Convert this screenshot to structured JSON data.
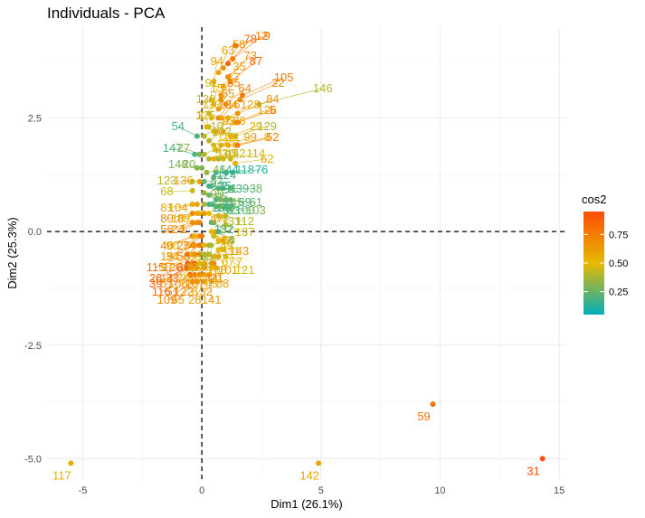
{
  "chart_data": {
    "type": "scatter",
    "title": "Individuals - PCA",
    "xlabel": "Dim1 (26.1%)",
    "ylabel": "Dim2 (25.3%)",
    "xlim": [
      -6.5,
      15.3
    ],
    "ylim": [
      -5.45,
      4.5
    ],
    "x_ticks": [
      -5,
      0,
      5,
      10,
      15
    ],
    "y_ticks": [
      -5.0,
      -2.5,
      0.0,
      2.5
    ],
    "x_tick_labels": [
      "-5",
      "0",
      "5",
      "10",
      "15"
    ],
    "y_tick_labels": [
      "-5.0",
      "-2.5",
      "0.0",
      "2.5"
    ],
    "reference_lines": {
      "x": 0,
      "y": 0,
      "style": "dashed"
    },
    "grid": true,
    "legend": {
      "title": "cos2",
      "placement": "right",
      "type": "colorbar",
      "ticks": [
        0.25,
        0.5,
        0.75
      ],
      "tick_labels": [
        "0.25",
        "0.50",
        "0.75"
      ],
      "range": [
        0.05,
        0.95
      ],
      "colors": [
        "#00AFBB",
        "#E7B800",
        "#FC4E07"
      ]
    },
    "points": [
      {
        "label": "9",
        "x": 1.4,
        "y": 4.1,
        "cos2": 0.8
      },
      {
        "label": "12",
        "x": 1.3,
        "y": 3.8,
        "cos2": 0.75
      },
      {
        "label": "78",
        "x": 1.1,
        "y": 3.7,
        "cos2": 0.85
      },
      {
        "label": "58",
        "x": 0.9,
        "y": 3.6,
        "cos2": 0.65
      },
      {
        "label": "63",
        "x": 0.7,
        "y": 3.5,
        "cos2": 0.6
      },
      {
        "label": "94",
        "x": 0.5,
        "y": 3.3,
        "cos2": 0.6
      },
      {
        "label": "73",
        "x": 1.1,
        "y": 3.4,
        "cos2": 0.7
      },
      {
        "label": "87",
        "x": 1.2,
        "y": 3.3,
        "cos2": 0.85
      },
      {
        "label": "35",
        "x": 0.9,
        "y": 3.2,
        "cos2": 0.6
      },
      {
        "label": "105",
        "x": 1.7,
        "y": 3.0,
        "cos2": 0.75
      },
      {
        "label": "22",
        "x": 1.6,
        "y": 2.9,
        "cos2": 0.7
      },
      {
        "label": "17",
        "x": 0.8,
        "y": 3.0,
        "cos2": 0.65
      },
      {
        "label": "85",
        "x": 0.8,
        "y": 2.9,
        "cos2": 0.7
      },
      {
        "label": "64",
        "x": 1.0,
        "y": 2.8,
        "cos2": 0.7
      },
      {
        "label": "91",
        "x": 0.4,
        "y": 2.9,
        "cos2": 0.45
      },
      {
        "label": "15",
        "x": 0.5,
        "y": 2.8,
        "cos2": 0.55
      },
      {
        "label": "55",
        "x": 0.7,
        "y": 2.7,
        "cos2": 0.65
      },
      {
        "label": "146",
        "x": 2.4,
        "y": 2.8,
        "cos2": 0.4
      },
      {
        "label": "84",
        "x": 1.5,
        "y": 2.6,
        "cos2": 0.65
      },
      {
        "label": "130",
        "x": 0.3,
        "y": 2.6,
        "cos2": 0.45
      },
      {
        "label": "133",
        "x": 0.4,
        "y": 2.5,
        "cos2": 0.5
      },
      {
        "label": "134",
        "x": 0.7,
        "y": 2.5,
        "cos2": 0.7
      },
      {
        "label": "16",
        "x": 0.8,
        "y": 2.5,
        "cos2": 0.65
      },
      {
        "label": "128",
        "x": 1.1,
        "y": 2.5,
        "cos2": 0.6
      },
      {
        "label": "126",
        "x": 1.4,
        "y": 2.4,
        "cos2": 0.6
      },
      {
        "label": "5",
        "x": 1.5,
        "y": 2.4,
        "cos2": 0.75
      },
      {
        "label": "3",
        "x": 0.2,
        "y": 2.3,
        "cos2": 0.55
      },
      {
        "label": "125",
        "x": 0.3,
        "y": 2.3,
        "cos2": 0.45
      },
      {
        "label": "75",
        "x": 0.5,
        "y": 2.2,
        "cos2": 0.5
      },
      {
        "label": "93",
        "x": 0.6,
        "y": 2.2,
        "cos2": 0.6
      },
      {
        "label": "86",
        "x": 0.9,
        "y": 2.2,
        "cos2": 0.6
      },
      {
        "label": "29",
        "x": 1.2,
        "y": 2.1,
        "cos2": 0.55
      },
      {
        "label": "129",
        "x": 1.4,
        "y": 2.1,
        "cos2": 0.4
      },
      {
        "label": "54",
        "x": -0.2,
        "y": 2.1,
        "cos2": 0.2
      },
      {
        "label": "10",
        "x": 0.1,
        "y": 2.1,
        "cos2": 0.4
      },
      {
        "label": "102",
        "x": 0.3,
        "y": 2.0,
        "cos2": 0.4
      },
      {
        "label": "113",
        "x": 0.5,
        "y": 1.9,
        "cos2": 0.5
      },
      {
        "label": "71",
        "x": 0.8,
        "y": 1.9,
        "cos2": 0.55
      },
      {
        "label": "99",
        "x": 1.1,
        "y": 1.9,
        "cos2": 0.6
      },
      {
        "label": "8",
        "x": 1.4,
        "y": 1.9,
        "cos2": 0.5
      },
      {
        "label": "52",
        "x": 1.5,
        "y": 1.9,
        "cos2": 0.75
      },
      {
        "label": "25",
        "x": 0.6,
        "y": 1.8,
        "cos2": 0.5
      },
      {
        "label": "147",
        "x": -0.3,
        "y": 1.7,
        "cos2": 0.2
      },
      {
        "label": "27",
        "x": -0.1,
        "y": 1.7,
        "cos2": 0.3
      },
      {
        "label": "77",
        "x": 0.1,
        "y": 1.7,
        "cos2": 0.4
      },
      {
        "label": "53",
        "x": 0.3,
        "y": 1.6,
        "cos2": 0.4
      },
      {
        "label": "110",
        "x": 0.5,
        "y": 1.6,
        "cos2": 0.55
      },
      {
        "label": "45",
        "x": 0.7,
        "y": 1.6,
        "cos2": 0.4
      },
      {
        "label": "42",
        "x": 0.9,
        "y": 1.6,
        "cos2": 0.45
      },
      {
        "label": "114",
        "x": 1.2,
        "y": 1.6,
        "cos2": 0.45
      },
      {
        "label": "62",
        "x": 1.4,
        "y": 1.5,
        "cos2": 0.55
      },
      {
        "label": "148",
        "x": -0.2,
        "y": 1.4,
        "cos2": 0.3
      },
      {
        "label": "20",
        "x": 0.0,
        "y": 1.4,
        "cos2": 0.3
      },
      {
        "label": "46",
        "x": 0.2,
        "y": 1.3,
        "cos2": 0.35
      },
      {
        "label": "144",
        "x": 0.6,
        "y": 1.3,
        "cos2": 0.15
      },
      {
        "label": "118",
        "x": 1.0,
        "y": 1.3,
        "cos2": 0.15
      },
      {
        "label": "76",
        "x": 1.3,
        "y": 1.3,
        "cos2": 0.1
      },
      {
        "label": "124",
        "x": 0.5,
        "y": 1.2,
        "cos2": 0.2
      },
      {
        "label": "123",
        "x": -0.4,
        "y": 1.1,
        "cos2": 0.4
      },
      {
        "label": "136",
        "x": -0.1,
        "y": 1.1,
        "cos2": 0.6
      },
      {
        "label": "82",
        "x": 0.1,
        "y": 1.1,
        "cos2": 0.25
      },
      {
        "label": "135",
        "x": 0.3,
        "y": 1.0,
        "cos2": 0.15
      },
      {
        "label": "2",
        "x": 0.4,
        "y": 1.0,
        "cos2": 0.2
      },
      {
        "label": "11",
        "x": 0.7,
        "y": 0.95,
        "cos2": 0.2
      },
      {
        "label": "139",
        "x": 0.9,
        "y": 0.95,
        "cos2": 0.2
      },
      {
        "label": "38",
        "x": 1.2,
        "y": 0.95,
        "cos2": 0.25
      },
      {
        "label": "68",
        "x": -0.4,
        "y": 0.9,
        "cos2": 0.45
      },
      {
        "label": "98",
        "x": 0.1,
        "y": 0.85,
        "cos2": 0.35
      },
      {
        "label": "95",
        "x": 0.3,
        "y": 0.8,
        "cos2": 0.25
      },
      {
        "label": "41",
        "x": 0.6,
        "y": 0.7,
        "cos2": 0.2
      },
      {
        "label": "145",
        "x": 0.8,
        "y": 0.7,
        "cos2": 0.3
      },
      {
        "label": "69",
        "x": 1.0,
        "y": 0.7,
        "cos2": 0.2
      },
      {
        "label": "61",
        "x": 1.2,
        "y": 0.7,
        "cos2": 0.25
      },
      {
        "label": "81",
        "x": -0.4,
        "y": 0.6,
        "cos2": 0.55
      },
      {
        "label": "104",
        "x": -0.2,
        "y": 0.6,
        "cos2": 0.6
      },
      {
        "label": "72",
        "x": 0.1,
        "y": 0.6,
        "cos2": 0.4
      },
      {
        "label": "134",
        "x": 0.3,
        "y": 0.6,
        "cos2": 0.2
      },
      {
        "label": "140",
        "x": 0.45,
        "y": 0.6,
        "cos2": 0.15
      },
      {
        "label": "92",
        "x": 0.6,
        "y": 0.55,
        "cos2": 0.2
      },
      {
        "label": "83",
        "x": 0.8,
        "y": 0.55,
        "cos2": 0.25
      },
      {
        "label": "100",
        "x": 1.0,
        "y": 0.55,
        "cos2": 0.2
      },
      {
        "label": "103",
        "x": 1.2,
        "y": 0.55,
        "cos2": 0.3
      },
      {
        "label": "80",
        "x": -0.4,
        "y": 0.4,
        "cos2": 0.7
      },
      {
        "label": "18",
        "x": -0.2,
        "y": 0.4,
        "cos2": 0.6
      },
      {
        "label": "89",
        "x": -0.1,
        "y": 0.4,
        "cos2": 0.55
      },
      {
        "label": "47",
        "x": 0.1,
        "y": 0.4,
        "cos2": 0.65
      },
      {
        "label": "70",
        "x": 0.3,
        "y": 0.4,
        "cos2": 0.5
      },
      {
        "label": "131",
        "x": 0.7,
        "y": 0.35,
        "cos2": 0.4
      },
      {
        "label": "112",
        "x": 1.0,
        "y": 0.35,
        "cos2": 0.4
      },
      {
        "label": "56",
        "x": -0.4,
        "y": 0.2,
        "cos2": 0.7
      },
      {
        "label": "24",
        "x": -0.2,
        "y": 0.2,
        "cos2": 0.65
      },
      {
        "label": "1",
        "x": -0.1,
        "y": 0.2,
        "cos2": 0.7
      },
      {
        "label": "132",
        "x": 0.4,
        "y": 0.2,
        "cos2": 0.2
      },
      {
        "label": "37",
        "x": 0.5,
        "y": 0.2,
        "cos2": 0.3
      },
      {
        "label": "137",
        "x": 1.0,
        "y": 0.15,
        "cos2": 0.45
      },
      {
        "label": "138",
        "x": 0.4,
        "y": 0.0,
        "cos2": 0.5
      },
      {
        "label": "60",
        "x": 0.6,
        "y": 0.0,
        "cos2": 0.6
      },
      {
        "label": "4",
        "x": 0.7,
        "y": 0.0,
        "cos2": 0.2
      },
      {
        "label": "40",
        "x": -0.4,
        "y": -0.1,
        "cos2": 0.75
      },
      {
        "label": "90",
        "x": -0.3,
        "y": -0.1,
        "cos2": 0.5
      },
      {
        "label": "23",
        "x": -0.1,
        "y": -0.1,
        "cos2": 0.7
      },
      {
        "label": "74",
        "x": 0.0,
        "y": -0.1,
        "cos2": 0.75
      },
      {
        "label": "49",
        "x": 0.5,
        "y": -0.1,
        "cos2": 0.45
      },
      {
        "label": "111",
        "x": 0.7,
        "y": -0.2,
        "cos2": 0.5
      },
      {
        "label": "143",
        "x": 0.9,
        "y": -0.2,
        "cos2": 0.65
      },
      {
        "label": "19",
        "x": -0.4,
        "y": -0.3,
        "cos2": 0.65
      },
      {
        "label": "34",
        "x": -0.3,
        "y": -0.3,
        "cos2": 0.6
      },
      {
        "label": "50",
        "x": -0.1,
        "y": -0.3,
        "cos2": 0.75
      },
      {
        "label": "36",
        "x": 0.1,
        "y": -0.3,
        "cos2": 0.5
      },
      {
        "label": "96",
        "x": 0.3,
        "y": -0.3,
        "cos2": 0.35
      },
      {
        "label": "119",
        "x": 0.4,
        "y": -0.3,
        "cos2": 0.4
      },
      {
        "label": "67",
        "x": 0.7,
        "y": -0.4,
        "cos2": 0.5
      },
      {
        "label": "7",
        "x": 0.9,
        "y": -0.4,
        "cos2": 0.55
      },
      {
        "label": "115",
        "x": -0.6,
        "y": -0.5,
        "cos2": 0.8
      },
      {
        "label": "97",
        "x": -0.4,
        "y": -0.5,
        "cos2": 0.55
      },
      {
        "label": "120",
        "x": -0.3,
        "y": -0.5,
        "cos2": 0.75
      },
      {
        "label": "66",
        "x": -0.1,
        "y": -0.5,
        "cos2": 0.85
      },
      {
        "label": "127",
        "x": 0.1,
        "y": -0.5,
        "cos2": 0.45
      },
      {
        "label": "48",
        "x": 0.3,
        "y": -0.5,
        "cos2": 0.45
      },
      {
        "label": "108",
        "x": 0.5,
        "y": -0.55,
        "cos2": 0.55
      },
      {
        "label": "101",
        "x": 0.7,
        "y": -0.55,
        "cos2": 0.6
      },
      {
        "label": "121",
        "x": 1.0,
        "y": -0.55,
        "cos2": 0.45
      },
      {
        "label": "26",
        "x": -0.6,
        "y": -0.7,
        "cos2": 0.9
      },
      {
        "label": "14",
        "x": -0.4,
        "y": -0.7,
        "cos2": 0.7
      },
      {
        "label": "33",
        "x": -0.3,
        "y": -0.7,
        "cos2": 0.85
      },
      {
        "label": "79",
        "x": -0.1,
        "y": -0.7,
        "cos2": 0.5
      },
      {
        "label": "30",
        "x": 0.1,
        "y": -0.7,
        "cos2": 0.6
      },
      {
        "label": "44",
        "x": 0.4,
        "y": -0.7,
        "cos2": 0.7
      },
      {
        "label": "21",
        "x": 0.5,
        "y": -0.7,
        "cos2": 0.7
      },
      {
        "label": "39",
        "x": -0.6,
        "y": -0.8,
        "cos2": 0.85
      },
      {
        "label": "57",
        "x": -0.4,
        "y": -0.8,
        "cos2": 0.65
      },
      {
        "label": "106",
        "x": -0.2,
        "y": -0.8,
        "cos2": 0.65
      },
      {
        "label": "107",
        "x": 0.1,
        "y": -0.8,
        "cos2": 0.7
      },
      {
        "label": "43",
        "x": 0.4,
        "y": -0.8,
        "cos2": 0.5
      },
      {
        "label": "88",
        "x": 0.6,
        "y": -0.8,
        "cos2": 0.6
      },
      {
        "label": "116",
        "x": -0.5,
        "y": -0.95,
        "cos2": 0.85
      },
      {
        "label": "51",
        "x": -0.3,
        "y": -0.95,
        "cos2": 0.75
      },
      {
        "label": "122",
        "x": -0.1,
        "y": -0.95,
        "cos2": 0.7
      },
      {
        "label": "6",
        "x": 0.1,
        "y": -0.95,
        "cos2": 0.6
      },
      {
        "label": "32",
        "x": 0.3,
        "y": -0.95,
        "cos2": 0.65
      },
      {
        "label": "109",
        "x": -0.4,
        "y": -1.1,
        "cos2": 0.7
      },
      {
        "label": "65",
        "x": -0.2,
        "y": -1.1,
        "cos2": 0.65
      },
      {
        "label": "28",
        "x": 0.1,
        "y": -1.1,
        "cos2": 0.6
      },
      {
        "label": "141",
        "x": 0.4,
        "y": -1.1,
        "cos2": 0.6
      },
      {
        "label": "59",
        "x": 9.7,
        "y": -3.8,
        "cos2": 0.8
      },
      {
        "label": "31",
        "x": 14.3,
        "y": -5.0,
        "cos2": 0.95
      },
      {
        "label": "117",
        "x": -5.5,
        "y": -5.1,
        "cos2": 0.55
      },
      {
        "label": "142",
        "x": 4.9,
        "y": -5.1,
        "cos2": 0.6
      }
    ]
  }
}
